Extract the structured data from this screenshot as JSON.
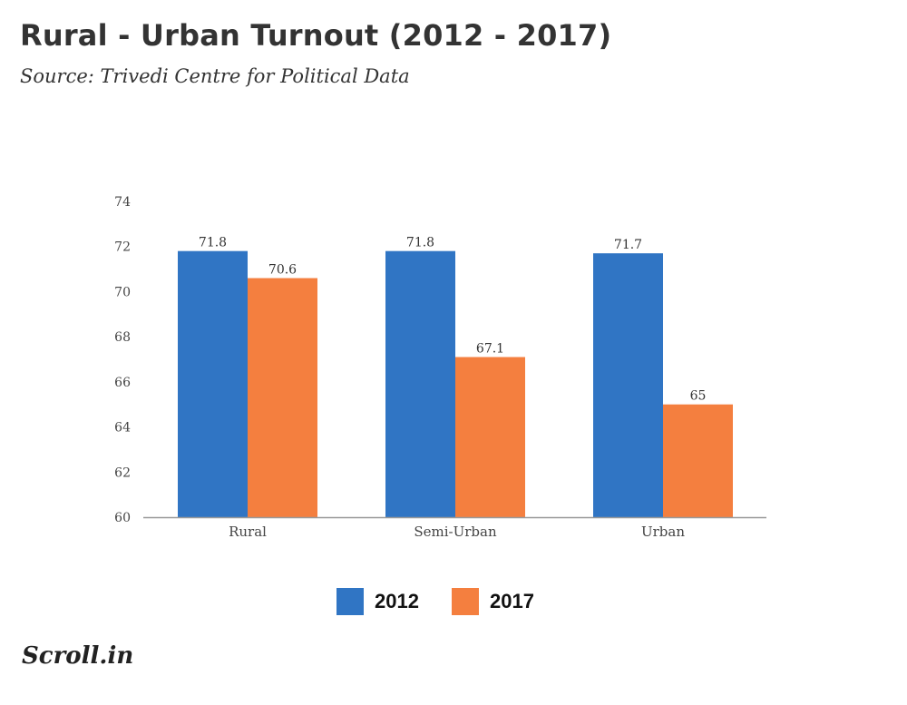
{
  "header": {
    "title": "Rural - Urban Turnout (2012 - 2017)",
    "subtitle": "Source: Trivedi Centre for Political Data"
  },
  "brand": {
    "logo_text": "Scroll.in"
  },
  "colors": {
    "series_2012": "#3075c4",
    "series_2017": "#f47f3f",
    "axis": "#999999",
    "text": "#333333"
  },
  "chart_data": {
    "type": "bar",
    "categories": [
      "Rural",
      "Semi-Urban",
      "Urban"
    ],
    "series": [
      {
        "name": "2012",
        "values": [
          71.8,
          71.8,
          71.7
        ],
        "color": "#3075c4"
      },
      {
        "name": "2017",
        "values": [
          70.6,
          67.1,
          65
        ],
        "color": "#f47f3f"
      }
    ],
    "ylim": [
      60,
      74
    ],
    "yticks": [
      60,
      62,
      64,
      66,
      68,
      70,
      72,
      74
    ],
    "grid": false,
    "legend_position": "bottom-center",
    "data_labels": true
  }
}
